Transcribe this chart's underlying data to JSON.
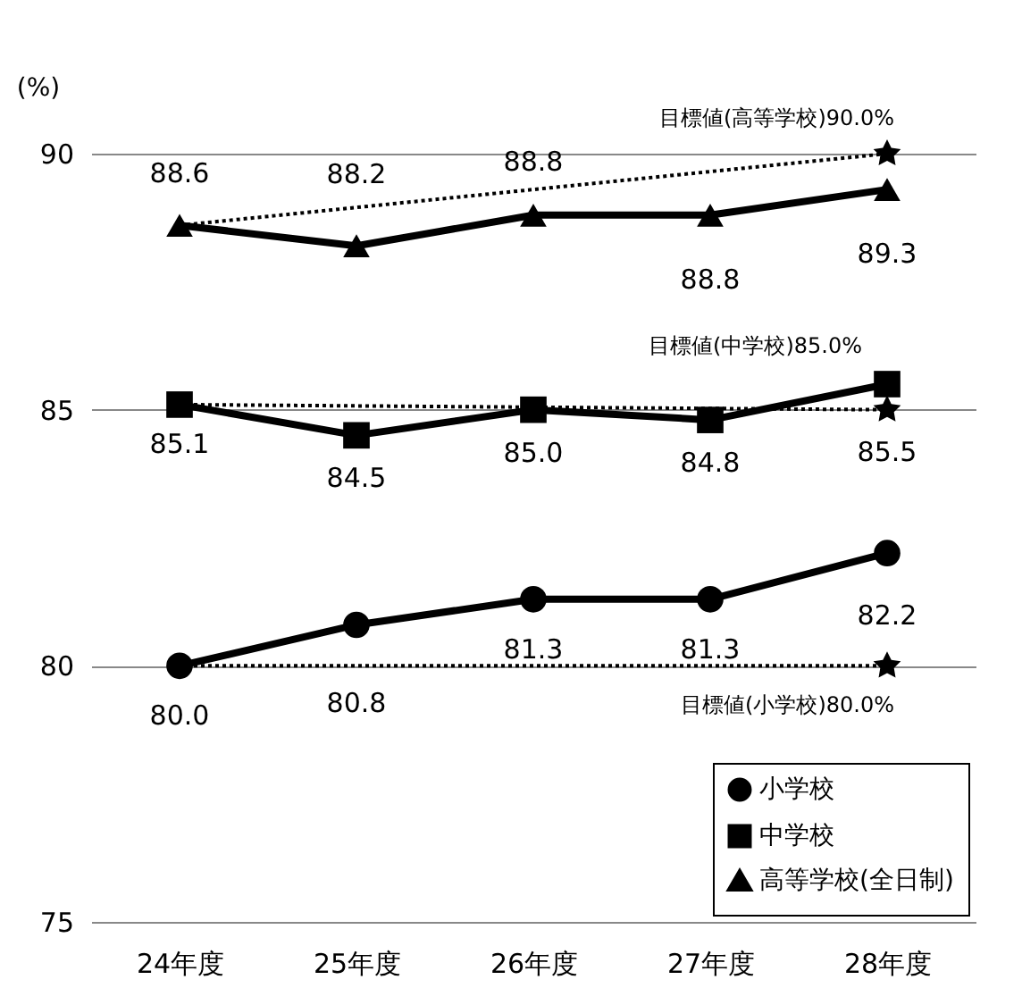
{
  "chart_data": {
    "type": "line",
    "ylabel": "(%)",
    "categories": [
      "24年度",
      "25年度",
      "26年度",
      "27年度",
      "28年度"
    ],
    "ylim": [
      75,
      90
    ],
    "yticks": [
      75,
      80,
      85,
      90
    ],
    "grid": "y",
    "legend": "bottom right",
    "series": [
      {
        "name": "小学校",
        "color": "#000000",
        "marker": "circle",
        "values": [
          80.0,
          80.8,
          81.3,
          81.3,
          82.2
        ],
        "value_labels": [
          "80.0",
          "80.8",
          "81.3",
          "81.3",
          "82.2"
        ]
      },
      {
        "name": "中学校",
        "color": "#000000",
        "marker": "square",
        "values": [
          85.1,
          84.5,
          85.0,
          84.8,
          85.5
        ],
        "value_labels": [
          "85.1",
          "84.5",
          "85.0",
          "84.8",
          "85.5"
        ]
      },
      {
        "name": "高等学校(全日制)",
        "color": "#000000",
        "marker": "triangle",
        "values": [
          88.6,
          88.2,
          88.8,
          88.8,
          89.3
        ],
        "value_labels": [
          "88.6",
          "88.2",
          "88.8",
          "88.8",
          "89.3"
        ]
      },
      {
        "type": "line",
        "color": "#000000",
        "line_style": "dotted",
        "marker": "none",
        "x": [
          "24年度",
          "28年度"
        ],
        "values": [
          80.0,
          80.0
        ]
      },
      {
        "type": "line",
        "color": "#000000",
        "line_style": "dotted",
        "marker": "none",
        "x": [
          "24年度",
          "28年度"
        ],
        "values": [
          85.1,
          85.0
        ]
      },
      {
        "type": "line",
        "color": "#000000",
        "line_style": "dotted",
        "marker": "none",
        "x": [
          "24年度",
          "28年度"
        ],
        "values": [
          88.6,
          90.0
        ]
      },
      {
        "type": "scatter",
        "color": "#000000",
        "marker": "star",
        "x": [
          "28年度",
          "28年度",
          "28年度"
        ],
        "values": [
          80.0,
          85.0,
          90.0
        ]
      }
    ],
    "annotations": [
      {
        "text": "目標値(高等学校)90.0%",
        "x": "28年度",
        "y": 90.0
      },
      {
        "text": "目標値(中学校)85.0%",
        "x": "28年度",
        "y": 85.0
      },
      {
        "text": "目標値(小学校)80.0%",
        "x": "28年度",
        "y": 80.0
      }
    ]
  }
}
